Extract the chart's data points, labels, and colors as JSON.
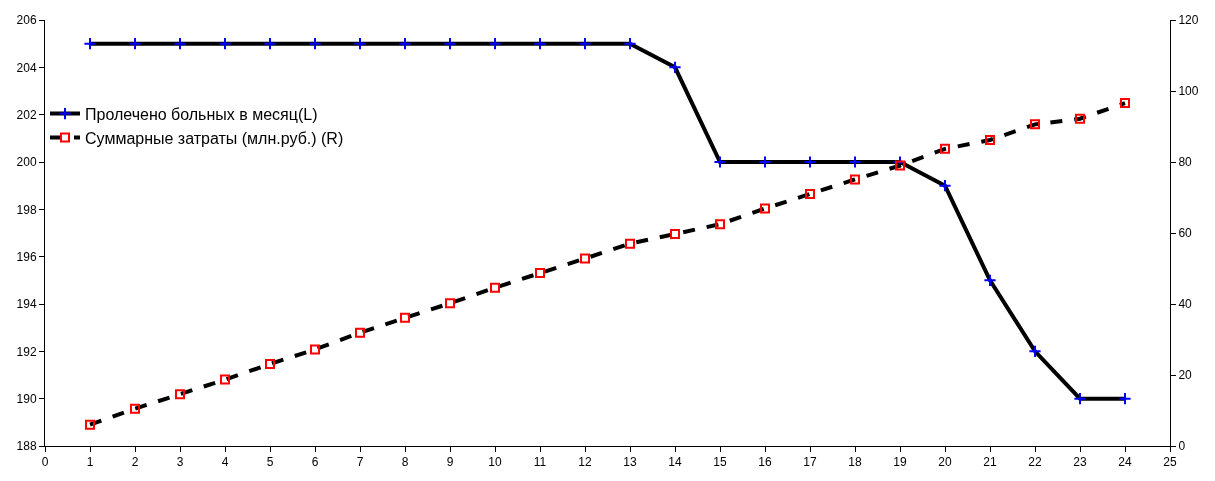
{
  "chart_data": {
    "type": "line",
    "x": [
      1,
      2,
      3,
      4,
      5,
      6,
      7,
      8,
      9,
      10,
      11,
      12,
      13,
      14,
      15,
      16,
      17,
      18,
      19,
      20,
      21,
      22,
      23,
      24
    ],
    "series": [
      {
        "name": "Пролечено больных в месяц(L)",
        "color": "#000000",
        "colors": [
          "#0000ff",
          "#0000ff",
          "#0000ff",
          "#0000ff",
          "#0000ff",
          "#0000ff",
          "#0000ff",
          "#0000ff",
          "#0000ff",
          "#0000ff",
          "#0000ff",
          "#0000ff",
          "#0000ff",
          "#0000ff",
          "#0000ff",
          "#0000ff",
          "#0000ff",
          "#0000ff",
          "#0000ff",
          "#0000ff",
          "#0000ff",
          "#0000ff",
          "#0000ff",
          "#0000ff"
        ],
        "marker": "cross",
        "line_style": "solid",
        "values": [
          205,
          205,
          205,
          205,
          205,
          205,
          205,
          205,
          205,
          205,
          205,
          205,
          205,
          204,
          200,
          200,
          200,
          200,
          200,
          199,
          195,
          192,
          190,
          190
        ]
      },
      {
        "name": "Суммарные затраты (млн.руб.) (R)",
        "color": "#000000",
        "colors": [
          "#ff0000",
          "#ff0000",
          "#ff0000",
          "#ff0000",
          "#ff0000",
          "#ff0000",
          "#ff0000",
          "#ff0000",
          "#ff0000",
          "#ff0000",
          "#ff0000",
          "#ff0000",
          "#ff0000",
          "#ff0000",
          "#ff0000",
          "#ff0000",
          "#ff0000",
          "#ff0000",
          "#ff0000",
          "#ff0000",
          "#ff0000",
          "#ff0000",
          "#ff0000",
          "#ff0000"
        ],
        "marker": "square",
        "line_style": "dashed",
        "axis": "y2",
        "values": [
          6,
          10.5,
          14.6,
          18.7,
          23.1,
          27.2,
          31.9,
          36.1,
          40.2,
          44.6,
          48.7,
          52.8,
          57,
          59.7,
          62.5,
          66.9,
          71,
          75.1,
          79,
          83.7,
          86.2,
          90.6,
          92.2,
          96.6
        ]
      }
    ],
    "xlim": [
      0,
      25
    ],
    "xticks": [
      0,
      1,
      2,
      3,
      4,
      5,
      6,
      7,
      8,
      9,
      10,
      11,
      12,
      13,
      14,
      15,
      16,
      17,
      18,
      19,
      20,
      21,
      22,
      23,
      24,
      25
    ],
    "ylim": [
      188,
      206
    ],
    "yticks": [
      188,
      190,
      192,
      194,
      196,
      198,
      200,
      202,
      204,
      206
    ],
    "y2lim": [
      0,
      120
    ],
    "y2ticks": [
      0,
      20,
      40,
      60,
      80,
      100,
      120
    ],
    "grid": false,
    "legend": "top left"
  }
}
